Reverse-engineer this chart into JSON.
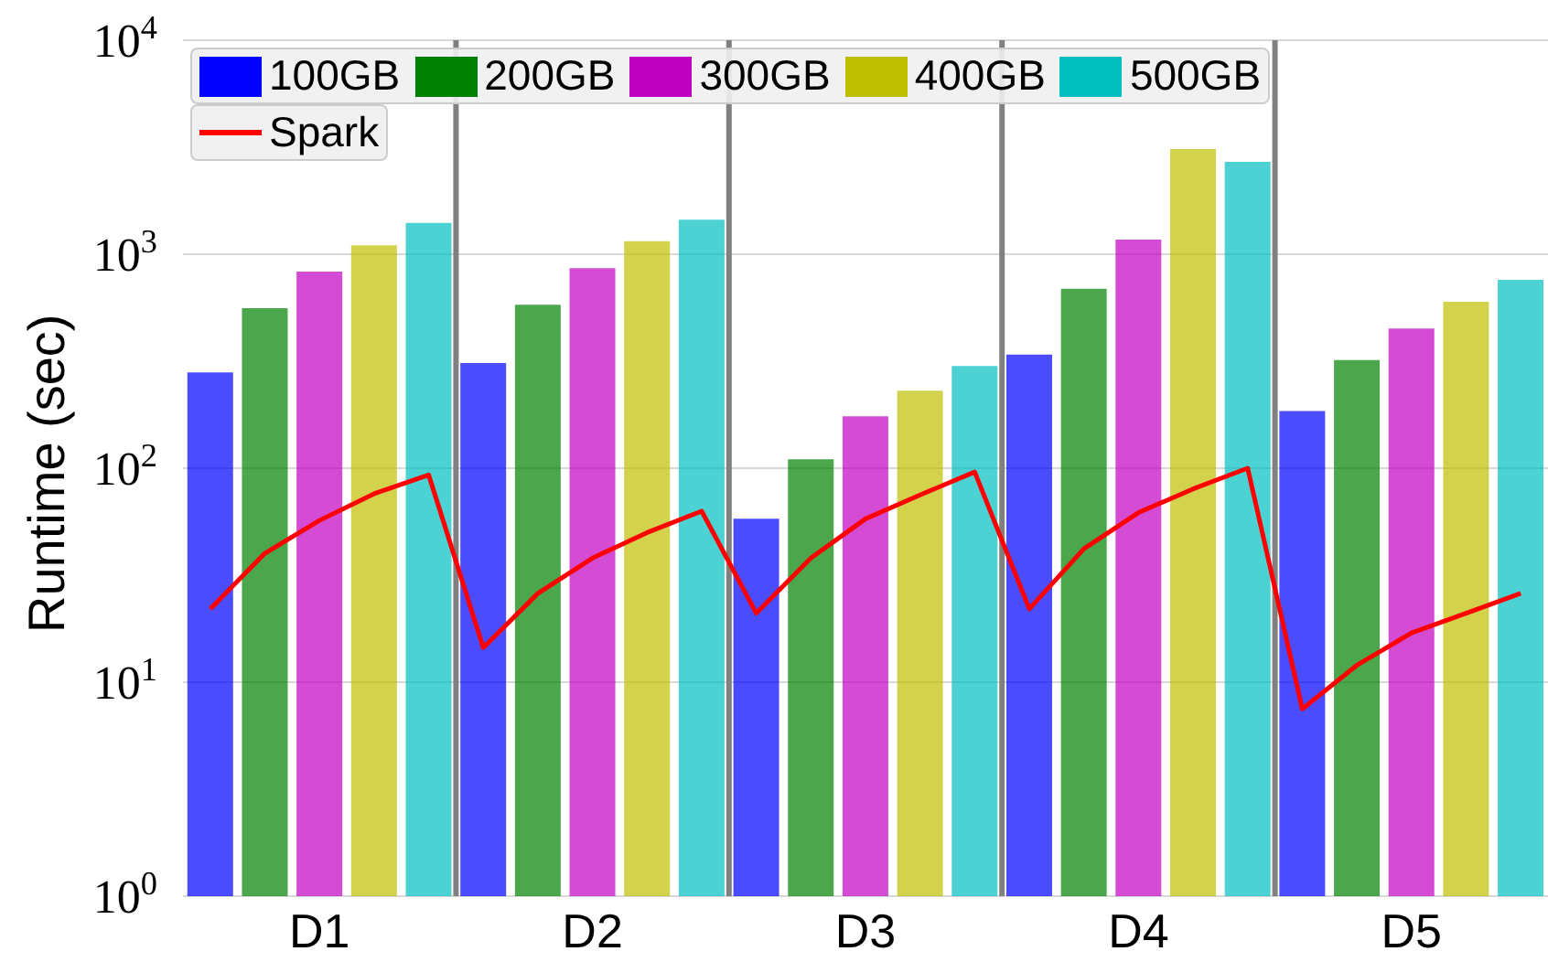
{
  "chart_data": {
    "type": "bar",
    "ylabel": "Runtime (sec)",
    "categories": [
      null,
      null,
      "D1",
      null,
      null,
      null,
      null,
      "D2",
      null,
      null,
      null,
      null,
      "D3",
      null,
      null,
      null,
      null,
      "D4",
      null,
      null,
      null,
      null,
      "D5",
      null,
      null
    ],
    "series": [
      {
        "name": "100GB",
        "color": "#0000ff",
        "values": [
          280,
          null,
          null,
          null,
          null,
          310,
          null,
          null,
          null,
          null,
          58,
          null,
          null,
          null,
          null,
          340,
          null,
          null,
          null,
          null,
          185,
          null,
          null,
          null,
          null
        ]
      },
      {
        "name": "200GB",
        "color": "#008000",
        "values": [
          null,
          560,
          null,
          null,
          null,
          null,
          580,
          null,
          null,
          null,
          null,
          110,
          null,
          null,
          null,
          null,
          690,
          null,
          null,
          null,
          null,
          320,
          null,
          null,
          null
        ]
      },
      {
        "name": "300GB",
        "color": "#c000c0",
        "values": [
          null,
          null,
          830,
          null,
          null,
          null,
          null,
          860,
          null,
          null,
          null,
          null,
          175,
          null,
          null,
          null,
          null,
          1170,
          null,
          null,
          null,
          null,
          450,
          null,
          null
        ]
      },
      {
        "name": "400GB",
        "color": "#bfbf00",
        "values": [
          null,
          null,
          null,
          1100,
          null,
          null,
          null,
          null,
          1150,
          null,
          null,
          null,
          null,
          230,
          null,
          null,
          null,
          null,
          3100,
          null,
          null,
          null,
          null,
          600,
          null
        ]
      },
      {
        "name": "500GB",
        "color": "#00bfbf",
        "values": [
          null,
          null,
          null,
          null,
          1400,
          null,
          null,
          null,
          null,
          1450,
          null,
          null,
          null,
          null,
          300,
          null,
          null,
          null,
          null,
          2700,
          null,
          null,
          null,
          null,
          760
        ]
      },
      {
        "name": "Spark",
        "type": "line",
        "color": "#ff0000",
        "values": [
          22,
          40,
          57,
          76,
          93,
          14.5,
          26,
          38,
          50,
          63,
          21,
          38,
          58,
          75,
          96,
          22,
          42,
          62,
          80,
          100,
          7.5,
          12,
          17,
          21,
          26
        ]
      }
    ],
    "log": "y",
    "ylim": [
      1,
      10000
    ],
    "yticks": [
      {
        "value": 1,
        "label": "10$^{0}$"
      },
      {
        "value": 10,
        "label": "10$^{1}$"
      },
      {
        "value": 100,
        "label": "10$^{2}$"
      },
      {
        "value": 1000,
        "label": "10$^{3}$"
      },
      {
        "value": 10000,
        "label": "10$^{4}$"
      }
    ],
    "grid": "y",
    "legend": "top left"
  }
}
